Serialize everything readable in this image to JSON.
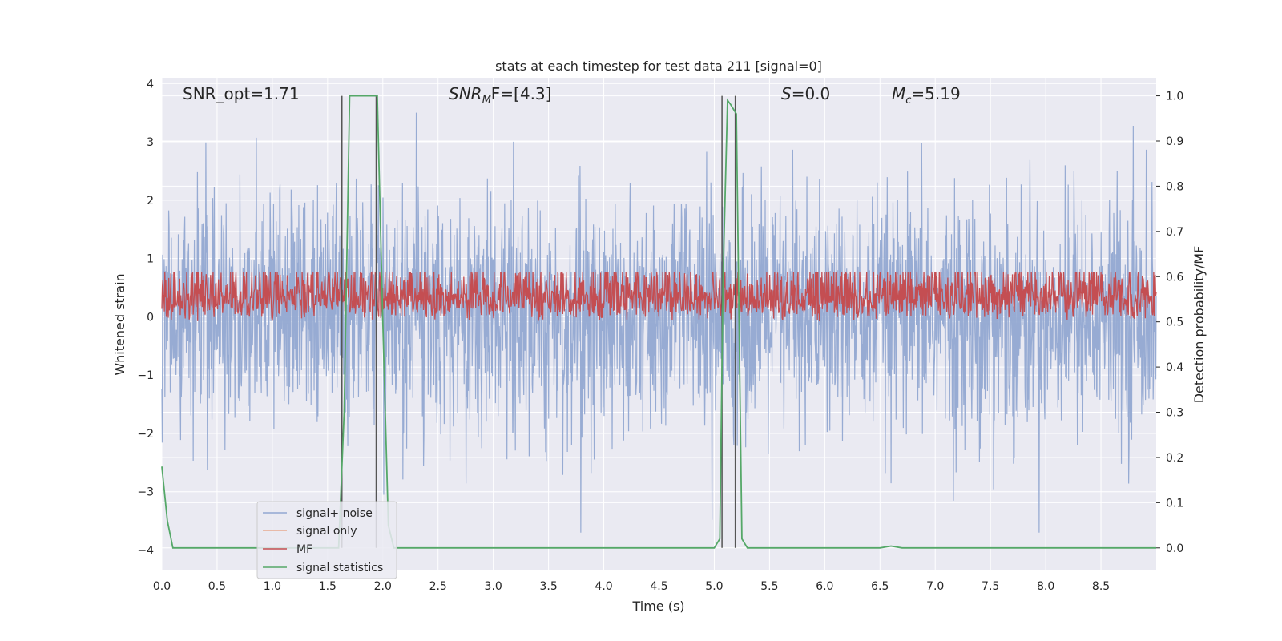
{
  "chart_data": {
    "type": "line",
    "title": "stats at each timestep for test data 211 [signal=0]",
    "xlabel": "Time (s)",
    "ylabel": "Whitened strain",
    "y2label": "Detection probability/MF",
    "xlim": [
      0.0,
      9.0
    ],
    "ylim": [
      -4.35,
      4.1
    ],
    "y2lim": [
      -0.05,
      1.04
    ],
    "xticks": [
      "0.0",
      "0.5",
      "1.0",
      "1.5",
      "2.0",
      "2.5",
      "3.0",
      "3.5",
      "4.0",
      "4.5",
      "5.0",
      "5.5",
      "6.0",
      "6.5",
      "7.0",
      "7.5",
      "8.0",
      "8.5"
    ],
    "yticks": [
      "4",
      "3",
      "2",
      "1",
      "0",
      "−1",
      "−2",
      "−3",
      "−4"
    ],
    "y2ticks": [
      "1.0",
      "0.9",
      "0.8",
      "0.7",
      "0.6",
      "0.5",
      "0.4",
      "0.3",
      "0.2",
      "0.1",
      "0.0"
    ],
    "grid": true,
    "legend_position": "lower-left",
    "annotations": {
      "snr_opt": "SNR_opt=1.71",
      "snr_mf_sym": "SNR",
      "snr_mf_sub": "M",
      "snr_mf_rest": "F=[4.3]",
      "s_sym": "S",
      "s_rest": "=0.0",
      "mc_sym": "M",
      "mc_sub": "c",
      "mc_rest": "=5.19"
    },
    "vertical_markers": [
      1.63,
      1.94,
      5.07,
      5.19
    ],
    "series": [
      {
        "name": "signal+ noise",
        "color": "#92a8d1",
        "axis": "left",
        "style": "noise",
        "envelope_max": 3.5,
        "envelope_min": -3.7,
        "typical_range": [
          -1.8,
          1.9
        ]
      },
      {
        "name": "signal only",
        "color": "#e8a98f",
        "axis": "left",
        "values": []
      },
      {
        "name": "MF",
        "color": "#c44e52",
        "axis": "right",
        "style": "noise",
        "typical_range": [
          0.5,
          0.62
        ]
      },
      {
        "name": "signal statistics",
        "color": "#55a868",
        "axis": "right",
        "x": [
          0.0,
          0.05,
          0.1,
          0.5,
          1.0,
          1.5,
          1.6,
          1.65,
          1.7,
          1.75,
          1.8,
          1.9,
          1.95,
          2.0,
          2.05,
          2.1,
          2.5,
          3.0,
          4.0,
          4.5,
          5.0,
          5.05,
          5.08,
          5.12,
          5.15,
          5.2,
          5.25,
          5.3,
          5.4,
          6.0,
          6.5,
          6.6,
          6.7,
          7.0,
          8.0,
          9.0
        ],
        "y": [
          0.18,
          0.06,
          0.0,
          0.0,
          0.0,
          0.0,
          0.0,
          0.3,
          1.0,
          1.0,
          1.0,
          1.0,
          1.0,
          0.5,
          0.05,
          0.0,
          0.0,
          0.0,
          0.0,
          0.0,
          0.0,
          0.02,
          0.6,
          0.99,
          0.98,
          0.96,
          0.02,
          0.0,
          0.0,
          0.0,
          0.0,
          0.004,
          0.0,
          0.0,
          0.0,
          0.0
        ]
      }
    ]
  }
}
